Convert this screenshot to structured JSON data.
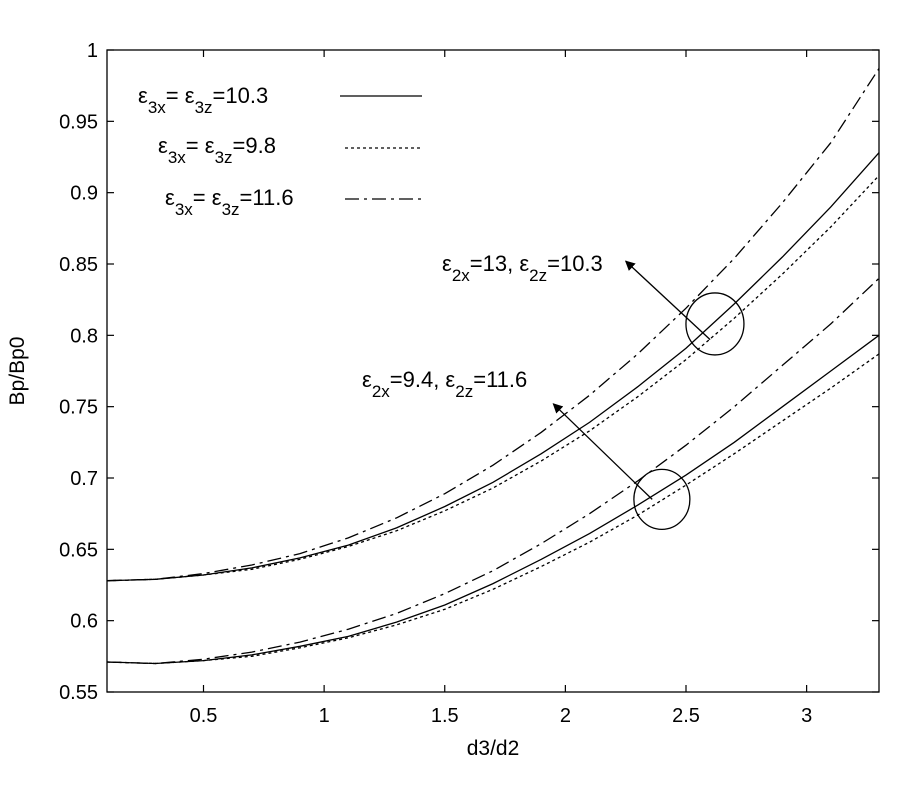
{
  "chart_data": {
    "type": "line",
    "title": "",
    "xlabel": "d3/d2",
    "ylabel": "Bp/Bp0",
    "xlim": [
      0.1,
      3.3
    ],
    "ylim": [
      0.55,
      1.0
    ],
    "xticks": [
      "0.5",
      "1",
      "1.5",
      "2",
      "2.5",
      "3"
    ],
    "yticks": [
      "0.55",
      "0.6",
      "0.65",
      "0.7",
      "0.75",
      "0.8",
      "0.85",
      "0.9",
      "0.95",
      "1"
    ],
    "grid": false,
    "legend_position": "top-left",
    "legend": [
      {
        "prefix": "ε",
        "sub1": "3x",
        "mid": "= ε",
        "sub2": "3z",
        "suffix": "=10.3",
        "style": "solid"
      },
      {
        "prefix": "ε",
        "sub1": "3x",
        "mid": "= ε",
        "sub2": "3z",
        "suffix": "=9.8",
        "style": "dotted"
      },
      {
        "prefix": "ε",
        "sub1": "3x",
        "mid": "= ε",
        "sub2": "3z",
        "suffix": "=11.6",
        "style": "dashdot"
      }
    ],
    "annotations": [
      {
        "prefix": "ε",
        "sub1": "2x",
        "mid": "=13,  ε",
        "sub2": "2z",
        "suffix": "=10.3",
        "circle_at": [
          2.62,
          0.808
        ],
        "arrow_from": [
          2.6,
          0.797
        ],
        "arrow_to": [
          2.25,
          0.852
        ]
      },
      {
        "prefix": "ε",
        "sub1": "2x",
        "mid": "=9.4, ε",
        "sub2": "2z",
        "suffix": "=11.6",
        "circle_at": [
          2.4,
          0.685
        ],
        "arrow_from": [
          2.36,
          0.685
        ],
        "arrow_to": [
          1.95,
          0.752
        ]
      }
    ],
    "x": [
      0.1,
      0.3,
      0.5,
      0.7,
      0.9,
      1.1,
      1.3,
      1.5,
      1.7,
      1.9,
      2.1,
      2.3,
      2.5,
      2.7,
      2.9,
      3.1,
      3.3
    ],
    "series": [
      {
        "style": "solid",
        "group": "upper",
        "values": [
          0.628,
          0.629,
          0.632,
          0.637,
          0.644,
          0.653,
          0.665,
          0.68,
          0.697,
          0.717,
          0.739,
          0.764,
          0.791,
          0.822,
          0.855,
          0.89,
          0.928
        ]
      },
      {
        "style": "dotted",
        "group": "upper",
        "values": [
          0.628,
          0.629,
          0.632,
          0.636,
          0.643,
          0.652,
          0.663,
          0.677,
          0.693,
          0.712,
          0.733,
          0.757,
          0.783,
          0.812,
          0.843,
          0.876,
          0.912
        ]
      },
      {
        "style": "dashdot",
        "group": "upper",
        "values": [
          0.628,
          0.629,
          0.633,
          0.639,
          0.647,
          0.658,
          0.672,
          0.689,
          0.709,
          0.732,
          0.758,
          0.787,
          0.819,
          0.854,
          0.893,
          0.935,
          0.987
        ]
      },
      {
        "style": "solid",
        "group": "lower",
        "values": [
          0.571,
          0.57,
          0.572,
          0.576,
          0.582,
          0.589,
          0.599,
          0.611,
          0.626,
          0.643,
          0.661,
          0.681,
          0.702,
          0.725,
          0.75,
          0.775,
          0.8
        ]
      },
      {
        "style": "dotted",
        "group": "lower",
        "values": [
          0.571,
          0.57,
          0.572,
          0.575,
          0.581,
          0.588,
          0.597,
          0.608,
          0.622,
          0.638,
          0.655,
          0.674,
          0.695,
          0.717,
          0.74,
          0.763,
          0.787
        ]
      },
      {
        "style": "dashdot",
        "group": "lower",
        "values": [
          0.571,
          0.57,
          0.573,
          0.578,
          0.585,
          0.594,
          0.605,
          0.619,
          0.635,
          0.654,
          0.675,
          0.698,
          0.723,
          0.75,
          0.779,
          0.808,
          0.84
        ]
      }
    ]
  }
}
